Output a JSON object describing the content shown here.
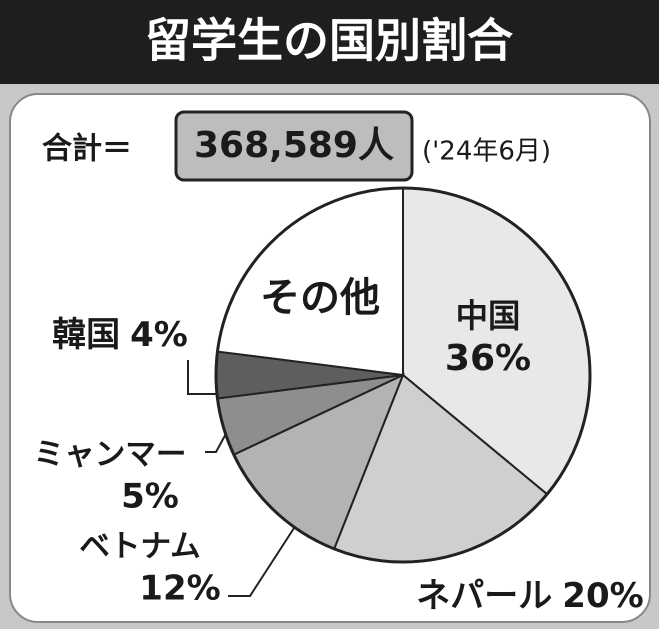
{
  "chart_data": {
    "type": "pie",
    "title": "留学生の国別割合",
    "total_label": "合計＝",
    "total_value": "368,589人",
    "date_note": "('24年6月)",
    "categories": [
      "中国",
      "ネパール",
      "ベトナム",
      "ミャンマー",
      "韓国",
      "その他"
    ],
    "values": [
      36,
      20,
      12,
      5,
      4,
      23
    ],
    "value_labels": [
      "36%",
      "20%",
      "12%",
      "5%",
      "4%",
      null
    ],
    "colors": [
      "#e8e8e8",
      "#cfcfcf",
      "#b3b3b3",
      "#8e8e8e",
      "#5e5e5e",
      "#ffffff"
    ]
  }
}
